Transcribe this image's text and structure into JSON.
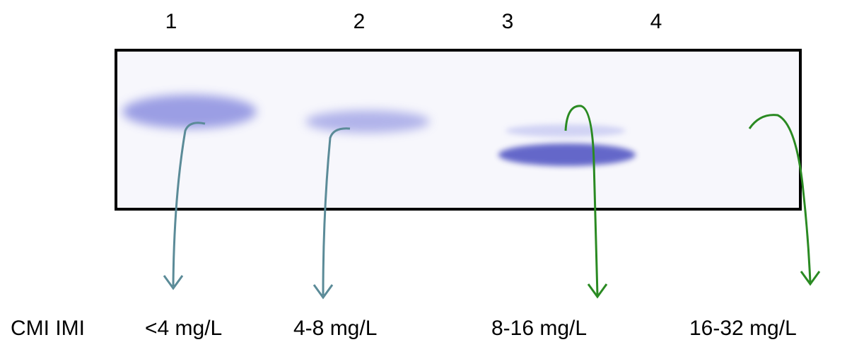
{
  "row_label": "CMI IMI",
  "lanes": [
    {
      "label": "1",
      "mic": "<4 mg/L"
    },
    {
      "label": "2",
      "mic": "4-8 mg/L"
    },
    {
      "label": "3",
      "mic": "8-16 mg/L"
    },
    {
      "label": "4",
      "mic": "16-32 mg/L"
    }
  ]
}
